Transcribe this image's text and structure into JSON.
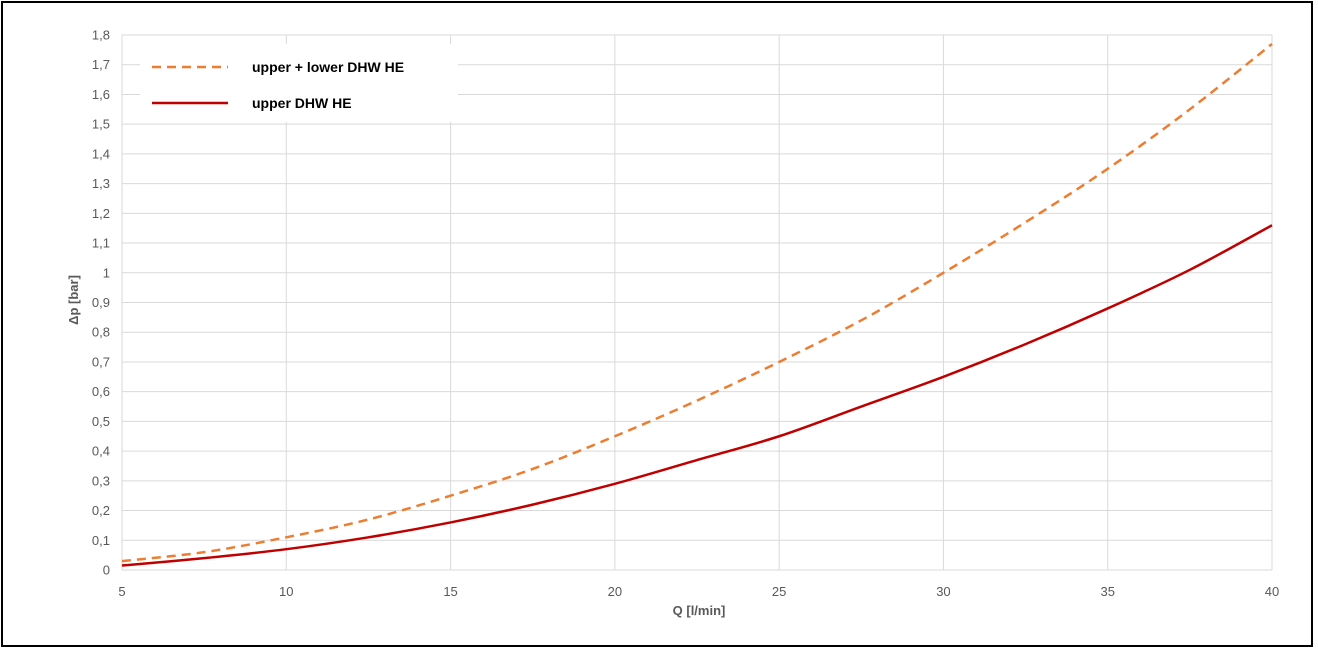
{
  "chart_data": {
    "type": "line",
    "xlabel": "Q [l/min]",
    "ylabel": "Δp [bar]",
    "xlim": [
      5,
      40
    ],
    "ylim": [
      0,
      1.8
    ],
    "x_ticks": [
      "5",
      "10",
      "15",
      "20",
      "25",
      "30",
      "35",
      "40"
    ],
    "y_ticks": [
      "0",
      "0,1",
      "0,2",
      "0,3",
      "0,4",
      "0,5",
      "0,6",
      "0,7",
      "0,8",
      "0,9",
      "1",
      "1,1",
      "1,2",
      "1,3",
      "1,4",
      "1,5",
      "1,6",
      "1,7",
      "1,8"
    ],
    "grid": true,
    "legend_position": "top-left",
    "series": [
      {
        "name": "upper + lower DHW HE",
        "style": "dashed",
        "color": "#ED7D31",
        "x": [
          5,
          7.5,
          10,
          12.5,
          15,
          17.5,
          20,
          22.5,
          25,
          27.5,
          30,
          32.5,
          35,
          37.5,
          40
        ],
        "y": [
          0.03,
          0.06,
          0.11,
          0.17,
          0.25,
          0.34,
          0.45,
          0.57,
          0.7,
          0.84,
          1.0,
          1.17,
          1.35,
          1.55,
          1.77
        ]
      },
      {
        "name": "upper DHW HE",
        "style": "solid",
        "color": "#C00000",
        "x": [
          5,
          7.5,
          10,
          12.5,
          15,
          17.5,
          20,
          22.5,
          25,
          27.5,
          30,
          32.5,
          35,
          37.5,
          40
        ],
        "y": [
          0.015,
          0.04,
          0.07,
          0.11,
          0.16,
          0.22,
          0.29,
          0.37,
          0.45,
          0.55,
          0.65,
          0.76,
          0.88,
          1.01,
          1.16
        ]
      }
    ]
  }
}
